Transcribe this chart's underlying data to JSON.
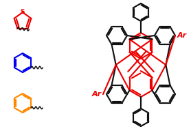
{
  "bg_color": "#ffffff",
  "thiophene_color": "#ee0000",
  "benzene_color": "#0000ee",
  "toluene_color": "#ff8800",
  "red_color": "#ee0000",
  "black_color": "#111111",
  "ar_color": "#ee0000",
  "s_label": "S",
  "ar_label": "Ar",
  "figsize": [
    2.78,
    1.89
  ],
  "dpi": 100
}
